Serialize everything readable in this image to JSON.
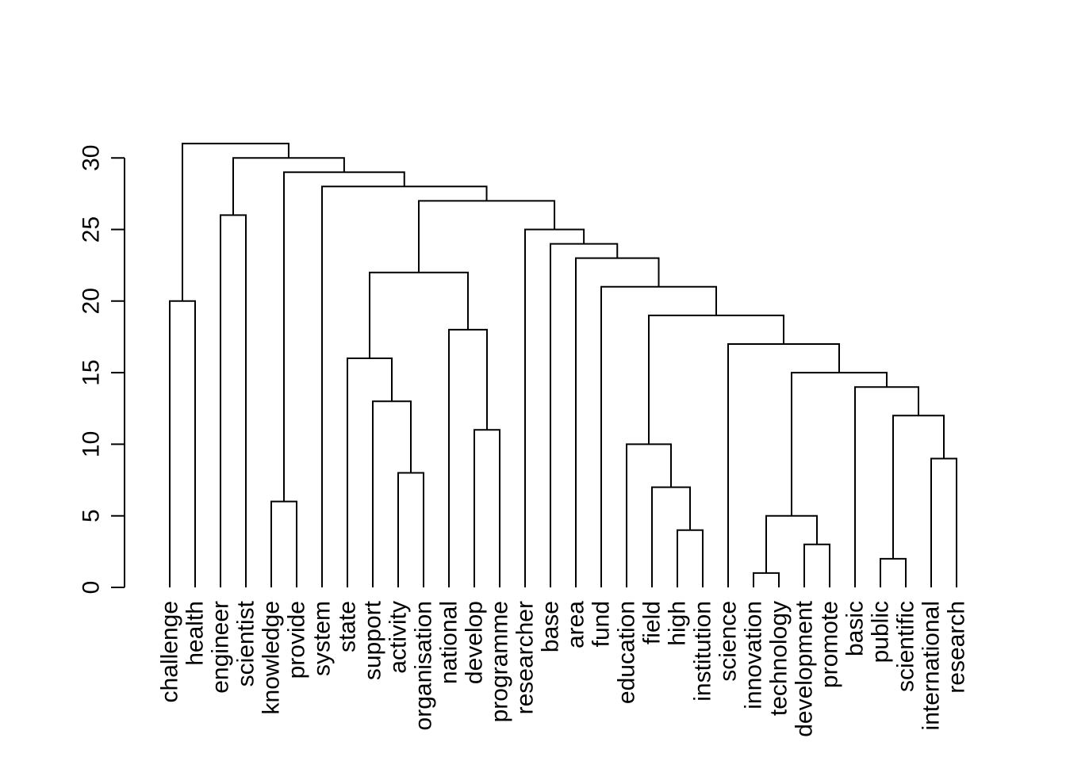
{
  "figure": {
    "background_color": "#ffffff",
    "line_color": "#000000",
    "text_color": "#000000"
  },
  "chart_data": {
    "type": "dendrogram",
    "orientation": "vertical",
    "title": "",
    "xlabel": "",
    "ylabel": "",
    "ylim": [
      0,
      31
    ],
    "yticks": [
      0,
      5,
      10,
      15,
      20,
      25,
      30
    ],
    "grid": false,
    "leaves": [
      "challenge",
      "health",
      "engineer",
      "scientist",
      "knowledge",
      "provide",
      "system",
      "state",
      "support",
      "activity",
      "organisation",
      "national",
      "develop",
      "programme",
      "researcher",
      "base",
      "area",
      "fund",
      "education",
      "field",
      "high",
      "institution",
      "science",
      "innovation",
      "technology",
      "development",
      "promote",
      "basic",
      "public",
      "scientific",
      "international",
      "research"
    ],
    "merges": [
      {
        "id": "m1",
        "height": 1,
        "children": [
          "innovation",
          "technology"
        ]
      },
      {
        "id": "m2",
        "height": 2,
        "children": [
          "public",
          "scientific"
        ]
      },
      {
        "id": "m3",
        "height": 3,
        "children": [
          "development",
          "promote"
        ]
      },
      {
        "id": "m4",
        "height": 4,
        "children": [
          "high",
          "institution"
        ]
      },
      {
        "id": "m5",
        "height": 5,
        "children": [
          "m1",
          "m3"
        ]
      },
      {
        "id": "m6",
        "height": 6,
        "children": [
          "knowledge",
          "provide"
        ]
      },
      {
        "id": "m7",
        "height": 7,
        "children": [
          "field",
          "m4"
        ]
      },
      {
        "id": "m8",
        "height": 8,
        "children": [
          "activity",
          "organisation"
        ]
      },
      {
        "id": "m9",
        "height": 9,
        "children": [
          "international",
          "research"
        ]
      },
      {
        "id": "m10",
        "height": 10,
        "children": [
          "education",
          "m7"
        ]
      },
      {
        "id": "m11",
        "height": 11,
        "children": [
          "develop",
          "programme"
        ]
      },
      {
        "id": "m12",
        "height": 12,
        "children": [
          "m2",
          "m9"
        ]
      },
      {
        "id": "m13",
        "height": 13,
        "children": [
          "support",
          "m8"
        ]
      },
      {
        "id": "m14",
        "height": 14,
        "children": [
          "basic",
          "m12"
        ]
      },
      {
        "id": "m15",
        "height": 15,
        "children": [
          "m5",
          "m14"
        ]
      },
      {
        "id": "m16",
        "height": 16,
        "children": [
          "state",
          "m13"
        ]
      },
      {
        "id": "m17",
        "height": 17,
        "children": [
          "science",
          "m15"
        ]
      },
      {
        "id": "m18",
        "height": 18,
        "children": [
          "national",
          "m11"
        ]
      },
      {
        "id": "m19",
        "height": 19,
        "children": [
          "m10",
          "m17"
        ]
      },
      {
        "id": "m20",
        "height": 20,
        "children": [
          "challenge",
          "health"
        ]
      },
      {
        "id": "m21",
        "height": 21,
        "children": [
          "fund",
          "m19"
        ]
      },
      {
        "id": "m22",
        "height": 22,
        "children": [
          "m16",
          "m18"
        ]
      },
      {
        "id": "m23",
        "height": 23,
        "children": [
          "area",
          "m21"
        ]
      },
      {
        "id": "m24",
        "height": 24,
        "children": [
          "base",
          "m23"
        ]
      },
      {
        "id": "m25",
        "height": 25,
        "children": [
          "researcher",
          "m24"
        ]
      },
      {
        "id": "m26",
        "height": 26,
        "children": [
          "engineer",
          "scientist"
        ]
      },
      {
        "id": "m27",
        "height": 27,
        "children": [
          "m22",
          "m25"
        ]
      },
      {
        "id": "m28",
        "height": 28,
        "children": [
          "system",
          "m27"
        ]
      },
      {
        "id": "m29",
        "height": 29,
        "children": [
          "m6",
          "m28"
        ]
      },
      {
        "id": "m30",
        "height": 30,
        "children": [
          "m26",
          "m29"
        ]
      },
      {
        "id": "m31",
        "height": 31,
        "children": [
          "m20",
          "m30"
        ]
      }
    ]
  }
}
